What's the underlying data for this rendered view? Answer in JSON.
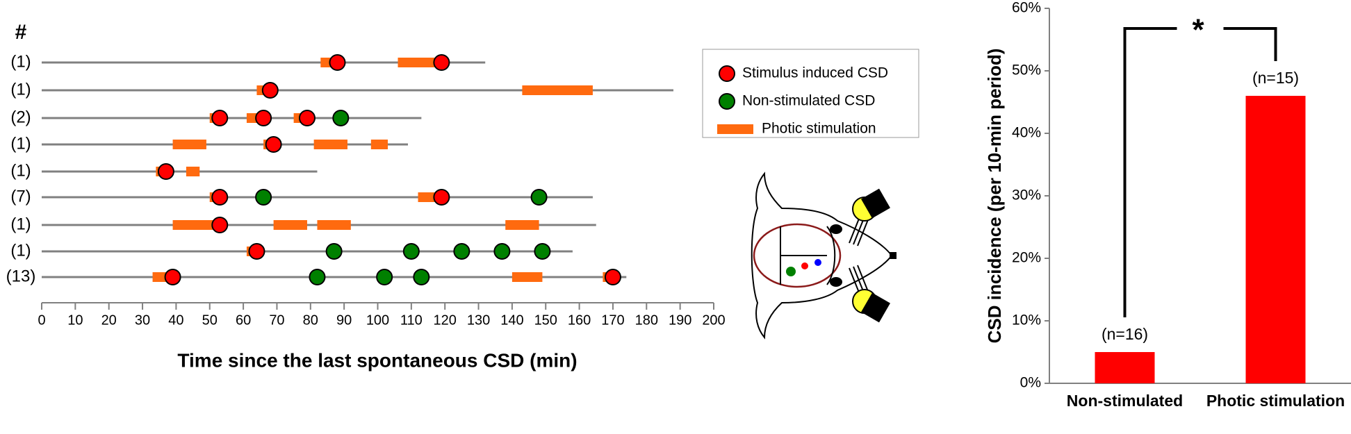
{
  "chart_data": [
    {
      "type": "timeline",
      "row_header": "#",
      "x_label": "Time since the last spontaneous CSD (min)",
      "xlim": [
        0,
        200
      ],
      "xticks": [
        0,
        10,
        20,
        30,
        40,
        50,
        60,
        70,
        80,
        90,
        100,
        110,
        120,
        130,
        140,
        150,
        160,
        170,
        180,
        190,
        200
      ],
      "line_color": "#808080",
      "legend": [
        {
          "name": "Stimulus induced CSD",
          "color": "#ff0000"
        },
        {
          "name": "Non-stimulated CSD",
          "color": "#008000"
        },
        {
          "name": "Photic stimulation",
          "color": "#ff6a0f"
        }
      ],
      "rows": [
        {
          "label": "(1)",
          "end": 132,
          "induced": [
            88,
            119
          ],
          "spontaneous": [],
          "stimulation": [
            [
              83,
              88
            ],
            [
              106,
              118
            ]
          ]
        },
        {
          "label": "(1)",
          "end": 188,
          "induced": [
            68
          ],
          "spontaneous": [],
          "stimulation": [
            [
              64,
              68
            ],
            [
              143,
              164
            ]
          ]
        },
        {
          "label": "(2)",
          "end": 113,
          "induced": [
            53,
            66,
            79
          ],
          "spontaneous": [
            89
          ],
          "stimulation": [
            [
              50,
              53
            ],
            [
              61,
              66
            ],
            [
              75,
              79
            ]
          ]
        },
        {
          "label": "(1)",
          "end": 109,
          "induced": [
            69
          ],
          "spontaneous": [],
          "stimulation": [
            [
              39,
              49
            ],
            [
              66,
              69
            ],
            [
              81,
              91
            ],
            [
              98,
              103
            ]
          ]
        },
        {
          "label": "(1)",
          "end": 82,
          "induced": [
            37
          ],
          "spontaneous": [],
          "stimulation": [
            [
              34,
              37
            ],
            [
              43,
              47
            ]
          ]
        },
        {
          "label": "(7)",
          "end": 164,
          "induced": [
            53,
            119
          ],
          "spontaneous": [
            66,
            148
          ],
          "stimulation": [
            [
              50,
              53
            ],
            [
              112,
              119
            ]
          ]
        },
        {
          "label": "(1)",
          "end": 165,
          "induced": [
            53
          ],
          "spontaneous": [],
          "stimulation": [
            [
              39,
              53
            ],
            [
              69,
              79
            ],
            [
              82,
              92
            ],
            [
              138,
              148
            ]
          ]
        },
        {
          "label": "(1)",
          "end": 158,
          "induced": [
            64
          ],
          "spontaneous": [
            87,
            110,
            125,
            137,
            149
          ],
          "stimulation": [
            [
              61,
              64
            ]
          ]
        },
        {
          "label": "(13)",
          "end": 174,
          "induced": [
            39,
            170
          ],
          "spontaneous": [
            82,
            102,
            113
          ],
          "stimulation": [
            [
              33,
              39
            ],
            [
              140,
              149
            ],
            [
              167,
              170
            ]
          ]
        }
      ]
    },
    {
      "type": "bar",
      "y_label": "CSD incidence (per 10-min period)",
      "categories": [
        "Non-stimulated",
        "Photic stimulation"
      ],
      "values": [
        5,
        46
      ],
      "bar_labels": [
        "(n=16)",
        "(n=15)"
      ],
      "color": "#ff0000",
      "significance": "*",
      "ylim": [
        0,
        60
      ],
      "yticks": [
        {
          "value": 0,
          "label": "0%"
        },
        {
          "value": 10,
          "label": "10%"
        },
        {
          "value": 20,
          "label": "20%"
        },
        {
          "value": 30,
          "label": "30%"
        },
        {
          "value": 40,
          "label": "40%"
        },
        {
          "value": 50,
          "label": "50%"
        },
        {
          "value": 60,
          "label": "60%"
        }
      ]
    }
  ]
}
